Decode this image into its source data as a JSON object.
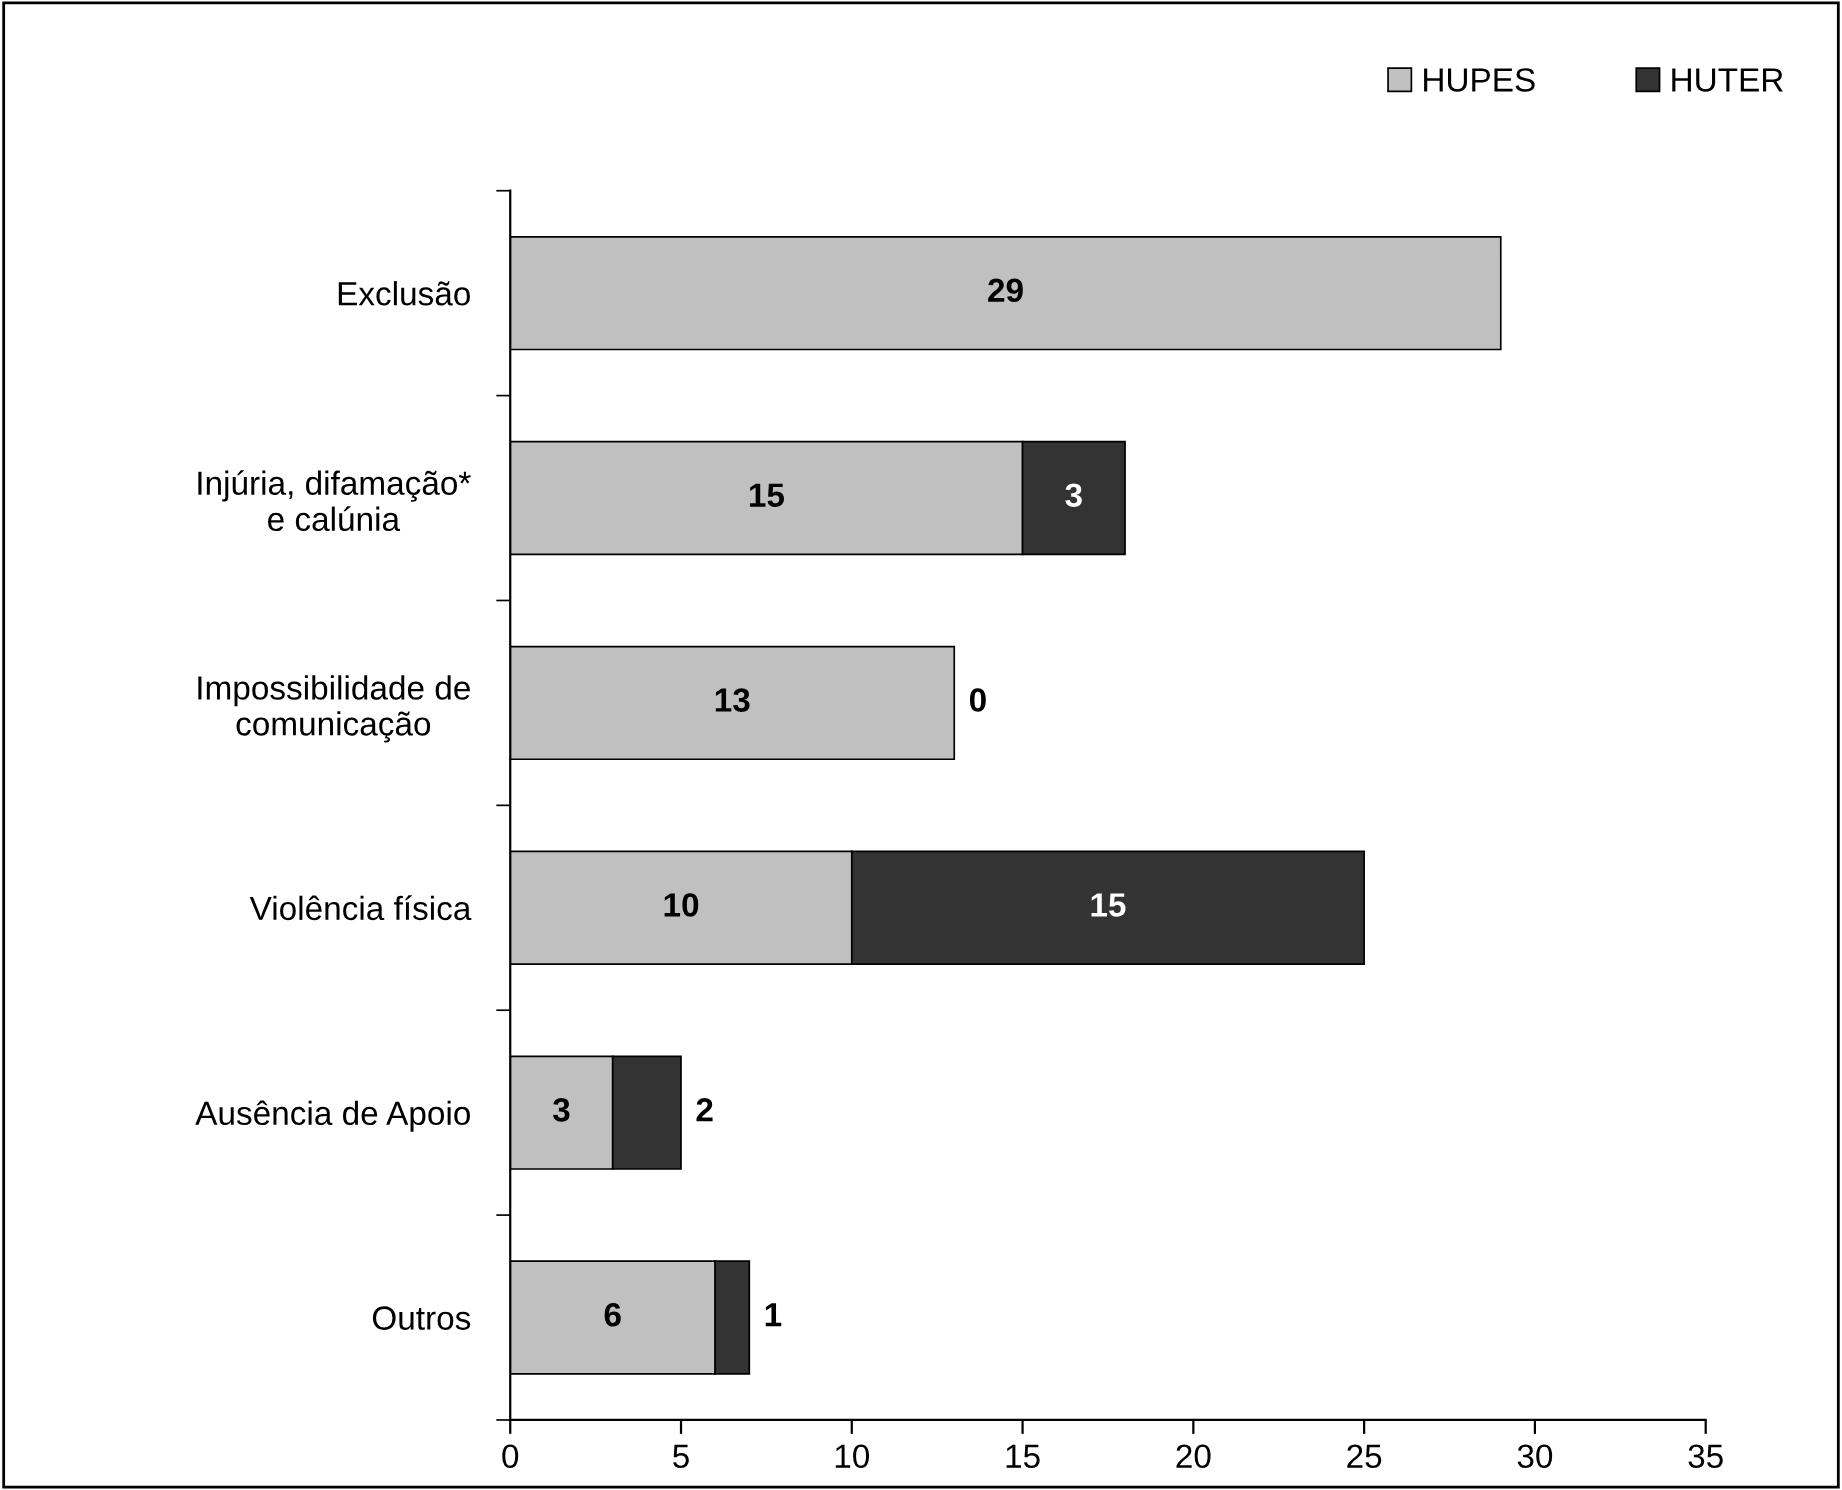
{
  "chart_data": {
    "type": "bar",
    "orientation": "horizontal",
    "stacked": true,
    "categories": [
      "Exclusão",
      "Injúria, difamação*\ne calúnia",
      "Impossibilidade de\ncomunicação",
      "Violência física",
      "Ausência de Apoio",
      "Outros"
    ],
    "series": [
      {
        "name": "HUPES",
        "color": "#c0c0c0",
        "values": [
          29,
          15,
          13,
          10,
          3,
          6
        ]
      },
      {
        "name": "HUTER",
        "color": "#333333",
        "values": [
          null,
          3,
          0,
          15,
          2,
          1
        ]
      }
    ],
    "xlim": [
      0,
      35
    ],
    "xticks": [
      0,
      5,
      10,
      15,
      20,
      25,
      30,
      35
    ],
    "grid": false,
    "legend": "top right",
    "data_labels": true
  }
}
